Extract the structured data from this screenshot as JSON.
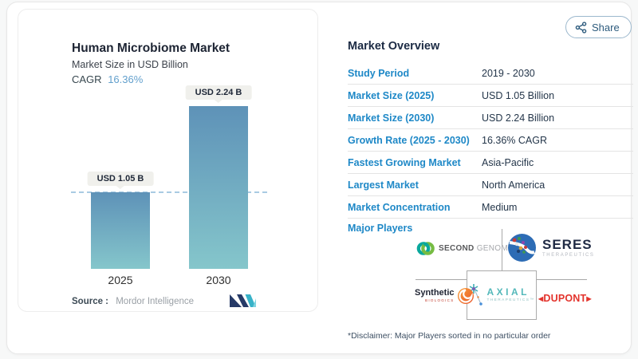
{
  "share": {
    "label": "Share"
  },
  "chart_panel": {
    "title": "Human Microbiome Market",
    "subtitle": "Market Size in USD Billion",
    "cagr_label": "CAGR",
    "cagr_value": "16.36%",
    "source_label": "Source :",
    "source_name": "Mordor Intelligence"
  },
  "chart_data": {
    "type": "bar",
    "title": "Human Microbiome Market",
    "ylabel": "Market Size in USD Billion",
    "categories": [
      "2025",
      "2030"
    ],
    "values": [
      1.05,
      2.24
    ],
    "bar_labels": [
      "USD 1.05 B",
      "USD 2.24 B"
    ],
    "cagr_percent": 16.36,
    "reference_line_value": 1.05,
    "bar_gradient_top": "#5e92b8",
    "bar_gradient_bottom": "#85c6cb",
    "reference_line_color": "#a9cbe3",
    "grid": false,
    "legend": false
  },
  "overview": {
    "title": "Market Overview",
    "rows": [
      {
        "label": "Study Period",
        "value": "2019 - 2030"
      },
      {
        "label": "Market Size (2025)",
        "value": "USD 1.05 Billion"
      },
      {
        "label": "Market Size (2030)",
        "value": "USD 2.24 Billion"
      },
      {
        "label": "Growth Rate (2025 - 2030)",
        "value": "16.36% CAGR"
      },
      {
        "label": "Fastest Growing Market",
        "value": "Asia-Pacific"
      },
      {
        "label": "Largest Market",
        "value": "North America"
      },
      {
        "label": "Market Concentration",
        "value": "Medium"
      }
    ],
    "major_players_label": "Major Players",
    "players": {
      "second_genome": {
        "word1": "SECOND",
        "word2": "GENOME"
      },
      "seres": {
        "name": "SERES",
        "sub": "THERAPEUTICS"
      },
      "synthetic": {
        "name": "Synthetic",
        "sub": "BIOLOGICS"
      },
      "axial": {
        "name": "AXIAL",
        "sub": "THERAPEUTICS™"
      },
      "dupont": {
        "name": "DUPONT",
        "left_mark": "◀",
        "right_mark": "▶"
      }
    },
    "disclaimer": "*Disclaimer: Major Players sorted in no particular order"
  },
  "colors": {
    "label_blue": "#1e88c7",
    "value_navy": "#24364a",
    "accent_teal": "#36b0c9",
    "share_blue": "#2d5b7d",
    "cagr_blue": "#63a0cd",
    "dupont_red": "#e3332c"
  }
}
